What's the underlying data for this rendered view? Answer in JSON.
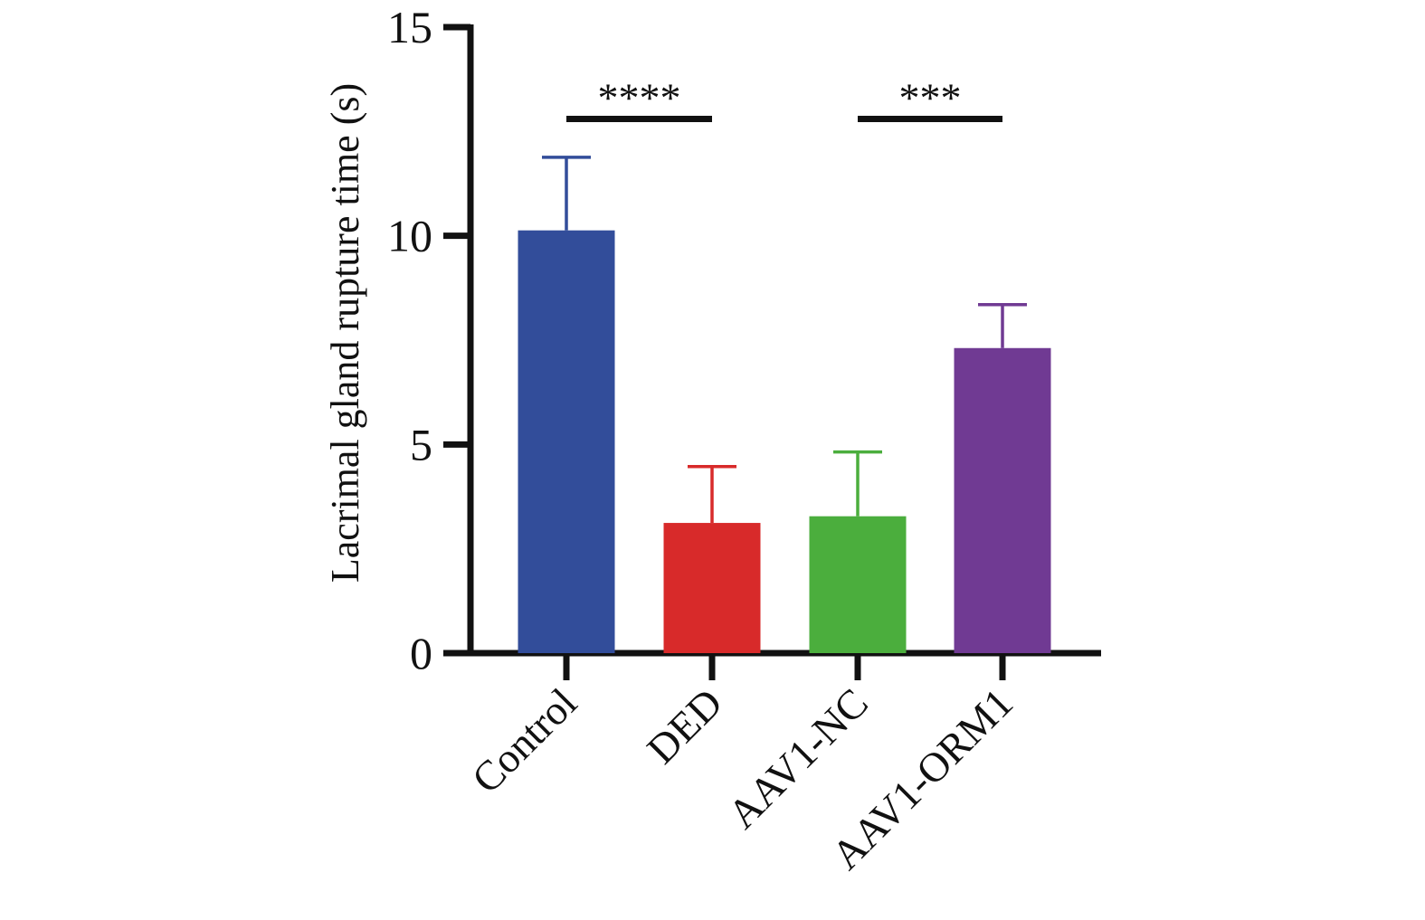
{
  "chart_data": {
    "type": "bar",
    "title": "",
    "xlabel": "",
    "ylabel": "Lacrimal gland rupture time (s)",
    "ylim": [
      0,
      15
    ],
    "yticks": [
      0,
      5,
      10,
      15
    ],
    "ytick_labels": [
      "0",
      "5",
      "10",
      "15"
    ],
    "categories": [
      "Control",
      "DED",
      "AAV1-NC",
      "AAV1-ORM1"
    ],
    "values": [
      10.13,
      3.12,
      3.28,
      7.31
    ],
    "error_upper": [
      1.75,
      1.35,
      1.54,
      1.04
    ],
    "colors": [
      "#324D9A",
      "#D82A2A",
      "#4BAE3D",
      "#703A93"
    ],
    "grid": false,
    "significance": [
      {
        "from": 0,
        "to": 1,
        "label": "****",
        "level": 12.8
      },
      {
        "from": 2,
        "to": 3,
        "label": "***",
        "level": 12.8
      }
    ]
  }
}
